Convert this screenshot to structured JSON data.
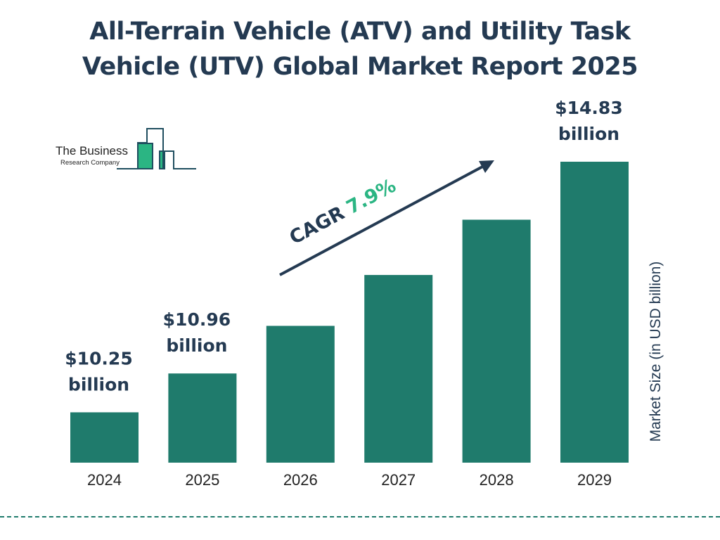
{
  "title_line1": "All-Terrain Vehicle (ATV) and Utility Task",
  "title_line2": "Vehicle (UTV) Global Market Report 2025",
  "logo": {
    "line1": "The Business",
    "line2": "Research Company"
  },
  "cagr": {
    "label": "CAGR",
    "value": "7.9%"
  },
  "colors": {
    "bar": "#1f7b6c",
    "text": "#243a52",
    "accent": "#2bb583"
  },
  "chart_data": {
    "type": "bar",
    "categories": [
      "2024",
      "2025",
      "2026",
      "2027",
      "2028",
      "2029"
    ],
    "values": [
      10.25,
      10.96,
      11.83,
      12.76,
      13.77,
      14.83
    ],
    "data_labels": [
      "$10.25 billion",
      "$10.96 billion",
      "",
      "",
      "",
      "$14.83 billion"
    ],
    "ylabel": "Market Size (in USD billion)",
    "ylim": [
      9.33,
      14.83
    ],
    "grid": false,
    "legend": "none"
  }
}
